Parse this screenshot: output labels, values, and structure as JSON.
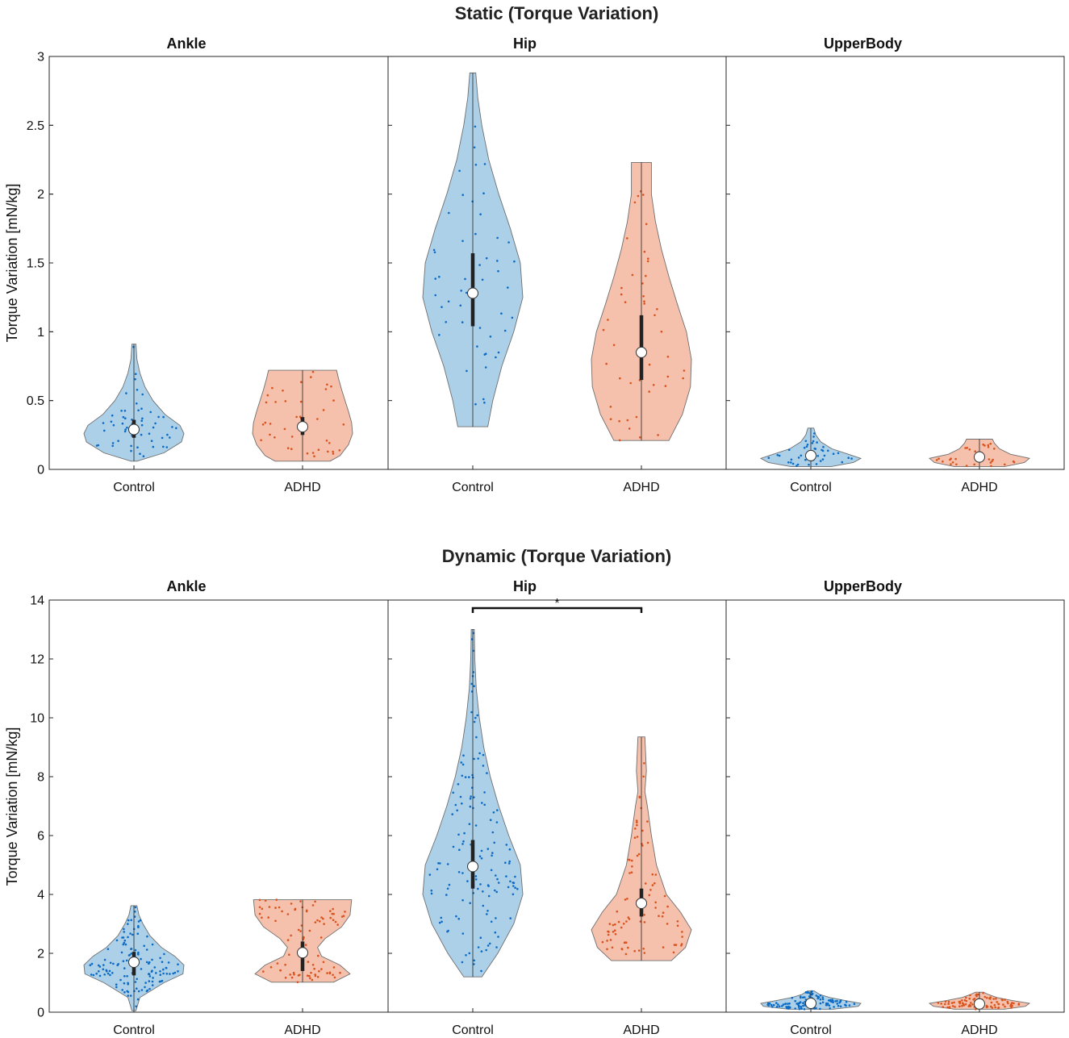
{
  "colors": {
    "control_fill": "#a9cde8",
    "control_dot": "#0b6bc4",
    "adhd_fill": "#f4bda8",
    "adhd_dot": "#d9531e",
    "violin_edge": "#6f6f6f",
    "box": "#222222",
    "median_fill": "#ffffff"
  },
  "chart_data": [
    {
      "type": "violin",
      "title": "Static (Torque Variation)",
      "ylabel": "Torque Variation [mN/kg]",
      "ylim": [
        0,
        3
      ],
      "yticks": [
        0,
        0.5,
        1,
        1.5,
        2,
        2.5,
        3
      ],
      "ytick_labels": [
        "0",
        "0.5",
        "1",
        "1.5",
        "2",
        "2.5",
        "3"
      ],
      "categories": [
        "Control",
        "ADHD"
      ],
      "panels": [
        {
          "title": "Ankle",
          "groups": [
            {
              "name": "Control",
              "min": 0.06,
              "max": 0.91,
              "q1": 0.23,
              "median": 0.29,
              "q3": 0.36,
              "n": 55,
              "profile": [
                [
                  0.06,
                  0.06
                ],
                [
                  0.12,
                  0.6
                ],
                [
                  0.2,
                  0.95
                ],
                [
                  0.26,
                  1
                ],
                [
                  0.32,
                  0.92
                ],
                [
                  0.4,
                  0.62
                ],
                [
                  0.5,
                  0.38
                ],
                [
                  0.6,
                  0.22
                ],
                [
                  0.7,
                  0.12
                ],
                [
                  0.8,
                  0.06
                ],
                [
                  0.91,
                  0.04
                ]
              ]
            },
            {
              "name": "ADHD",
              "min": 0.06,
              "max": 0.72,
              "q1": 0.25,
              "median": 0.31,
              "q3": 0.38,
              "n": 40,
              "profile": [
                [
                  0.06,
                  0.55
                ],
                [
                  0.1,
                  0.75
                ],
                [
                  0.18,
                  0.92
                ],
                [
                  0.26,
                  1
                ],
                [
                  0.34,
                  0.98
                ],
                [
                  0.42,
                  0.92
                ],
                [
                  0.5,
                  0.85
                ],
                [
                  0.58,
                  0.78
                ],
                [
                  0.66,
                  0.72
                ],
                [
                  0.72,
                  0.68
                ]
              ]
            }
          ]
        },
        {
          "title": "Hip",
          "groups": [
            {
              "name": "Control",
              "min": 0.31,
              "max": 2.88,
              "q1": 1.04,
              "median": 1.28,
              "q3": 1.57,
              "n": 50,
              "profile": [
                [
                  0.31,
                  0.3
                ],
                [
                  0.5,
                  0.4
                ],
                [
                  0.75,
                  0.58
                ],
                [
                  1.0,
                  0.82
                ],
                [
                  1.25,
                  1
                ],
                [
                  1.5,
                  0.95
                ],
                [
                  1.75,
                  0.75
                ],
                [
                  2.0,
                  0.52
                ],
                [
                  2.25,
                  0.32
                ],
                [
                  2.5,
                  0.18
                ],
                [
                  2.7,
                  0.1
                ],
                [
                  2.88,
                  0.06
                ]
              ]
            },
            {
              "name": "ADHD",
              "min": 0.21,
              "max": 2.23,
              "q1": 0.65,
              "median": 0.85,
              "q3": 1.12,
              "n": 45,
              "profile": [
                [
                  0.21,
                  0.55
                ],
                [
                  0.4,
                  0.82
                ],
                [
                  0.6,
                  0.98
                ],
                [
                  0.8,
                  1
                ],
                [
                  1.0,
                  0.9
                ],
                [
                  1.2,
                  0.72
                ],
                [
                  1.4,
                  0.55
                ],
                [
                  1.6,
                  0.4
                ],
                [
                  1.8,
                  0.28
                ],
                [
                  2.0,
                  0.2
                ],
                [
                  2.23,
                  0.2
                ]
              ]
            }
          ]
        },
        {
          "title": "UpperBody",
          "groups": [
            {
              "name": "Control",
              "min": 0.02,
              "max": 0.3,
              "q1": 0.06,
              "median": 0.1,
              "q3": 0.14,
              "n": 40,
              "profile": [
                [
                  0.02,
                  0.4
                ],
                [
                  0.05,
                  0.85
                ],
                [
                  0.08,
                  1
                ],
                [
                  0.11,
                  0.75
                ],
                [
                  0.15,
                  0.42
                ],
                [
                  0.2,
                  0.2
                ],
                [
                  0.25,
                  0.1
                ],
                [
                  0.3,
                  0.06
                ]
              ]
            },
            {
              "name": "ADHD",
              "min": 0.02,
              "max": 0.22,
              "q1": 0.05,
              "median": 0.09,
              "q3": 0.13,
              "n": 35,
              "profile": [
                [
                  0.02,
                  0.5
                ],
                [
                  0.05,
                  0.9
                ],
                [
                  0.08,
                  1
                ],
                [
                  0.11,
                  0.62
                ],
                [
                  0.15,
                  0.4
                ],
                [
                  0.19,
                  0.3
                ],
                [
                  0.22,
                  0.26
                ]
              ]
            }
          ]
        }
      ]
    },
    {
      "type": "violin",
      "title": "Dynamic (Torque Variation)",
      "ylabel": "Torque Variation [mN/kg]",
      "ylim": [
        0,
        14
      ],
      "yticks": [
        0,
        2,
        4,
        6,
        8,
        10,
        12,
        14
      ],
      "ytick_labels": [
        "0",
        "2",
        "4",
        "6",
        "8",
        "10",
        "12",
        "14"
      ],
      "categories": [
        "Control",
        "ADHD"
      ],
      "panels": [
        {
          "title": "Ankle",
          "groups": [
            {
              "name": "Control",
              "min": 0.05,
              "max": 3.62,
              "q1": 1.25,
              "median": 1.7,
              "q3": 2.05,
              "n": 130,
              "profile": [
                [
                  0.05,
                  0.04
                ],
                [
                  0.5,
                  0.12
                ],
                [
                  1.0,
                  0.6
                ],
                [
                  1.3,
                  0.98
                ],
                [
                  1.6,
                  1
                ],
                [
                  1.9,
                  0.82
                ],
                [
                  2.2,
                  0.55
                ],
                [
                  2.6,
                  0.32
                ],
                [
                  3.0,
                  0.18
                ],
                [
                  3.3,
                  0.1
                ],
                [
                  3.62,
                  0.06
                ]
              ]
            },
            {
              "name": "ADHD",
              "min": 1.02,
              "max": 3.82,
              "q1": 1.4,
              "median": 2.02,
              "q3": 2.4,
              "n": 90,
              "profile": [
                [
                  1.02,
                  0.62
                ],
                [
                  1.3,
                  0.95
                ],
                [
                  1.6,
                  0.75
                ],
                [
                  1.9,
                  0.38
                ],
                [
                  2.2,
                  0.3
                ],
                [
                  2.5,
                  0.45
                ],
                [
                  2.9,
                  0.78
                ],
                [
                  3.3,
                  0.95
                ],
                [
                  3.82,
                  0.98
                ]
              ]
            }
          ]
        },
        {
          "title": "Hip",
          "significance": "*",
          "groups": [
            {
              "name": "Control",
              "min": 1.2,
              "max": 13.0,
              "q1": 4.2,
              "median": 4.95,
              "q3": 5.85,
              "n": 140,
              "profile": [
                [
                  1.2,
                  0.18
                ],
                [
                  2.0,
                  0.5
                ],
                [
                  3.0,
                  0.82
                ],
                [
                  4.0,
                  1
                ],
                [
                  5.0,
                  0.95
                ],
                [
                  6.0,
                  0.72
                ],
                [
                  7.0,
                  0.52
                ],
                [
                  8.0,
                  0.35
                ],
                [
                  9.0,
                  0.22
                ],
                [
                  10.0,
                  0.13
                ],
                [
                  11.0,
                  0.07
                ],
                [
                  12.0,
                  0.04
                ],
                [
                  13.0,
                  0.03
                ]
              ]
            },
            {
              "name": "ADHD",
              "min": 1.75,
              "max": 9.35,
              "q1": 3.25,
              "median": 3.7,
              "q3": 4.2,
              "n": 90,
              "profile": [
                [
                  1.75,
                  0.6
                ],
                [
                  2.2,
                  0.88
                ],
                [
                  2.8,
                  1
                ],
                [
                  3.4,
                  0.78
                ],
                [
                  4.0,
                  0.5
                ],
                [
                  5.0,
                  0.3
                ],
                [
                  6.0,
                  0.2
                ],
                [
                  7.0,
                  0.12
                ],
                [
                  7.5,
                  0.07
                ],
                [
                  8.2,
                  0.1
                ],
                [
                  9.35,
                  0.07
                ]
              ]
            }
          ]
        },
        {
          "title": "UpperBody",
          "groups": [
            {
              "name": "Control",
              "min": 0.1,
              "max": 0.72,
              "q1": 0.2,
              "median": 0.3,
              "q3": 0.38,
              "n": 120,
              "profile": [
                [
                  0.1,
                  0.45
                ],
                [
                  0.2,
                  0.95
                ],
                [
                  0.3,
                  1
                ],
                [
                  0.4,
                  0.68
                ],
                [
                  0.5,
                  0.38
                ],
                [
                  0.6,
                  0.18
                ],
                [
                  0.72,
                  0.07
                ]
              ]
            },
            {
              "name": "ADHD",
              "min": 0.1,
              "max": 0.68,
              "q1": 0.2,
              "median": 0.28,
              "q3": 0.38,
              "n": 90,
              "profile": [
                [
                  0.1,
                  0.5
                ],
                [
                  0.2,
                  0.92
                ],
                [
                  0.3,
                  1
                ],
                [
                  0.4,
                  0.65
                ],
                [
                  0.5,
                  0.35
                ],
                [
                  0.6,
                  0.18
                ],
                [
                  0.68,
                  0.08
                ]
              ]
            }
          ]
        }
      ]
    }
  ]
}
